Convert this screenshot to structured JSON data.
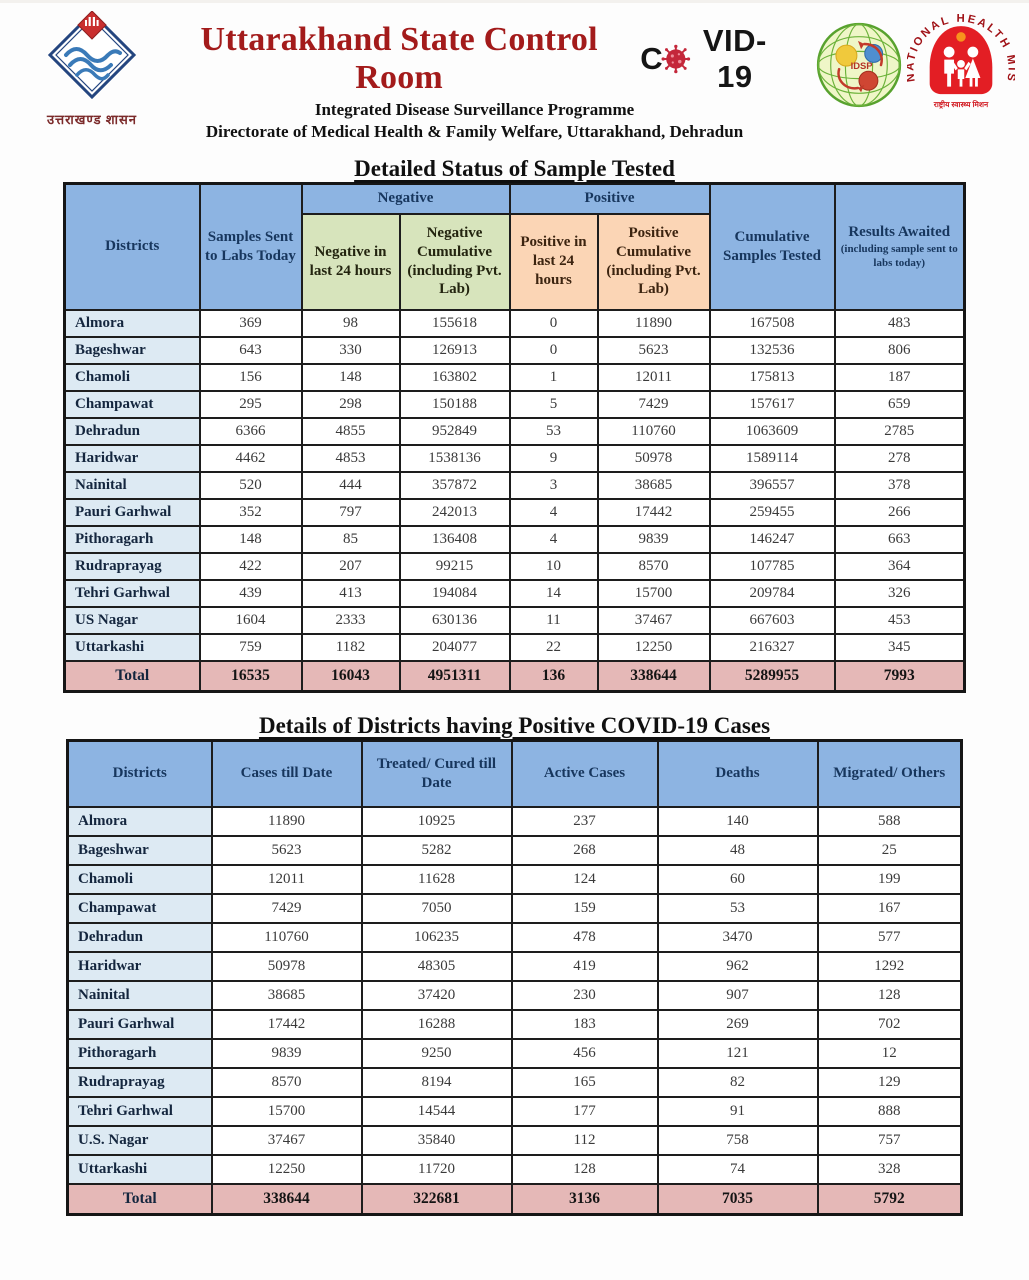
{
  "header": {
    "title": "Uttarakhand State Control Room",
    "covid_wordmark": {
      "prefix": "C",
      "suffix": "VID-19"
    },
    "subtitle1": "Integrated Disease Surveillance Programme",
    "subtitle2": "Directorate of Medical Health & Family Welfare, Uttarakhand, Dehradun",
    "state_logo_caption": "उत्तराखण्ड शासन",
    "idsp_label": "IDSP",
    "nhm_label": "NATIONAL HEALTH MISSION",
    "nhm_tagline": "राष्ट्रीय स्वास्थ्य मिशन"
  },
  "colors": {
    "title_red": "#a31b1b",
    "header_blue": "#8db4e2",
    "negative_green": "#d7e4bc",
    "positive_peach": "#fbd5b5",
    "district_light_blue": "#ddeaf3",
    "total_pink": "#e5b8b7",
    "header_text_navy": "#17365d"
  },
  "section1": {
    "title": "Detailed Status of Sample Tested",
    "table": {
      "headers": {
        "districts": "Districts",
        "samples_sent": "Samples Sent to Labs Today",
        "negative_group": "Negative",
        "positive_group": "Positive",
        "negative_24": "Negative in last 24 hours",
        "negative_cumulative": "Negative Cumulative (including Pvt. Lab)",
        "positive_24": "Positive in last 24 hours",
        "positive_cumulative": "Positive Cumulative (including Pvt. Lab)",
        "cumulative_samples": "Cumulative Samples Tested",
        "results_awaited": "Results Awaited",
        "results_awaited_note": "(including sample sent to labs today)"
      },
      "rows": [
        {
          "district": "Almora",
          "values": [
            369,
            98,
            155618,
            0,
            11890,
            167508,
            483
          ]
        },
        {
          "district": "Bageshwar",
          "values": [
            643,
            330,
            126913,
            0,
            5623,
            132536,
            806
          ]
        },
        {
          "district": "Chamoli",
          "values": [
            156,
            148,
            163802,
            1,
            12011,
            175813,
            187
          ]
        },
        {
          "district": "Champawat",
          "values": [
            295,
            298,
            150188,
            5,
            7429,
            157617,
            659
          ]
        },
        {
          "district": "Dehradun",
          "values": [
            6366,
            4855,
            952849,
            53,
            110760,
            1063609,
            2785
          ]
        },
        {
          "district": "Haridwar",
          "values": [
            4462,
            4853,
            1538136,
            9,
            50978,
            1589114,
            278
          ]
        },
        {
          "district": "Nainital",
          "values": [
            520,
            444,
            357872,
            3,
            38685,
            396557,
            378
          ]
        },
        {
          "district": "Pauri Garhwal",
          "values": [
            352,
            797,
            242013,
            4,
            17442,
            259455,
            266
          ]
        },
        {
          "district": "Pithoragarh",
          "values": [
            148,
            85,
            136408,
            4,
            9839,
            146247,
            663
          ]
        },
        {
          "district": "Rudraprayag",
          "values": [
            422,
            207,
            99215,
            10,
            8570,
            107785,
            364
          ]
        },
        {
          "district": "Tehri Garhwal",
          "values": [
            439,
            413,
            194084,
            14,
            15700,
            209784,
            326
          ]
        },
        {
          "district": "US Nagar",
          "values": [
            1604,
            2333,
            630136,
            11,
            37467,
            667603,
            453
          ]
        },
        {
          "district": "Uttarkashi",
          "values": [
            759,
            1182,
            204077,
            22,
            12250,
            216327,
            345
          ]
        },
        {
          "district": "Total",
          "total": true,
          "values": [
            16535,
            16043,
            4951311,
            136,
            338644,
            5289955,
            7993
          ]
        }
      ]
    }
  },
  "section2": {
    "title": "Details of Districts having Positive COVID-19 Cases",
    "table": {
      "headers": [
        "Districts",
        "Cases till Date",
        "Treated/ Cured till Date",
        "Active Cases",
        "Deaths",
        "Migrated/ Others"
      ],
      "rows": [
        {
          "district": "Almora",
          "values": [
            11890,
            10925,
            237,
            140,
            588
          ]
        },
        {
          "district": "Bageshwar",
          "values": [
            5623,
            5282,
            268,
            48,
            25
          ]
        },
        {
          "district": "Chamoli",
          "values": [
            12011,
            11628,
            124,
            60,
            199
          ]
        },
        {
          "district": "Champawat",
          "values": [
            7429,
            7050,
            159,
            53,
            167
          ]
        },
        {
          "district": "Dehradun",
          "values": [
            110760,
            106235,
            478,
            3470,
            577
          ]
        },
        {
          "district": "Haridwar",
          "values": [
            50978,
            48305,
            419,
            962,
            1292
          ]
        },
        {
          "district": "Nainital",
          "values": [
            38685,
            37420,
            230,
            907,
            128
          ]
        },
        {
          "district": "Pauri Garhwal",
          "values": [
            17442,
            16288,
            183,
            269,
            702
          ]
        },
        {
          "district": "Pithoragarh",
          "values": [
            9839,
            9250,
            456,
            121,
            12
          ]
        },
        {
          "district": "Rudraprayag",
          "values": [
            8570,
            8194,
            165,
            82,
            129
          ]
        },
        {
          "district": "Tehri Garhwal",
          "values": [
            15700,
            14544,
            177,
            91,
            888
          ]
        },
        {
          "district": "U.S. Nagar",
          "values": [
            37467,
            35840,
            112,
            758,
            757
          ]
        },
        {
          "district": "Uttarkashi",
          "values": [
            12250,
            11720,
            128,
            74,
            328
          ]
        },
        {
          "district": "Total",
          "total": true,
          "values": [
            338644,
            322681,
            3136,
            7035,
            5792
          ]
        }
      ]
    }
  }
}
